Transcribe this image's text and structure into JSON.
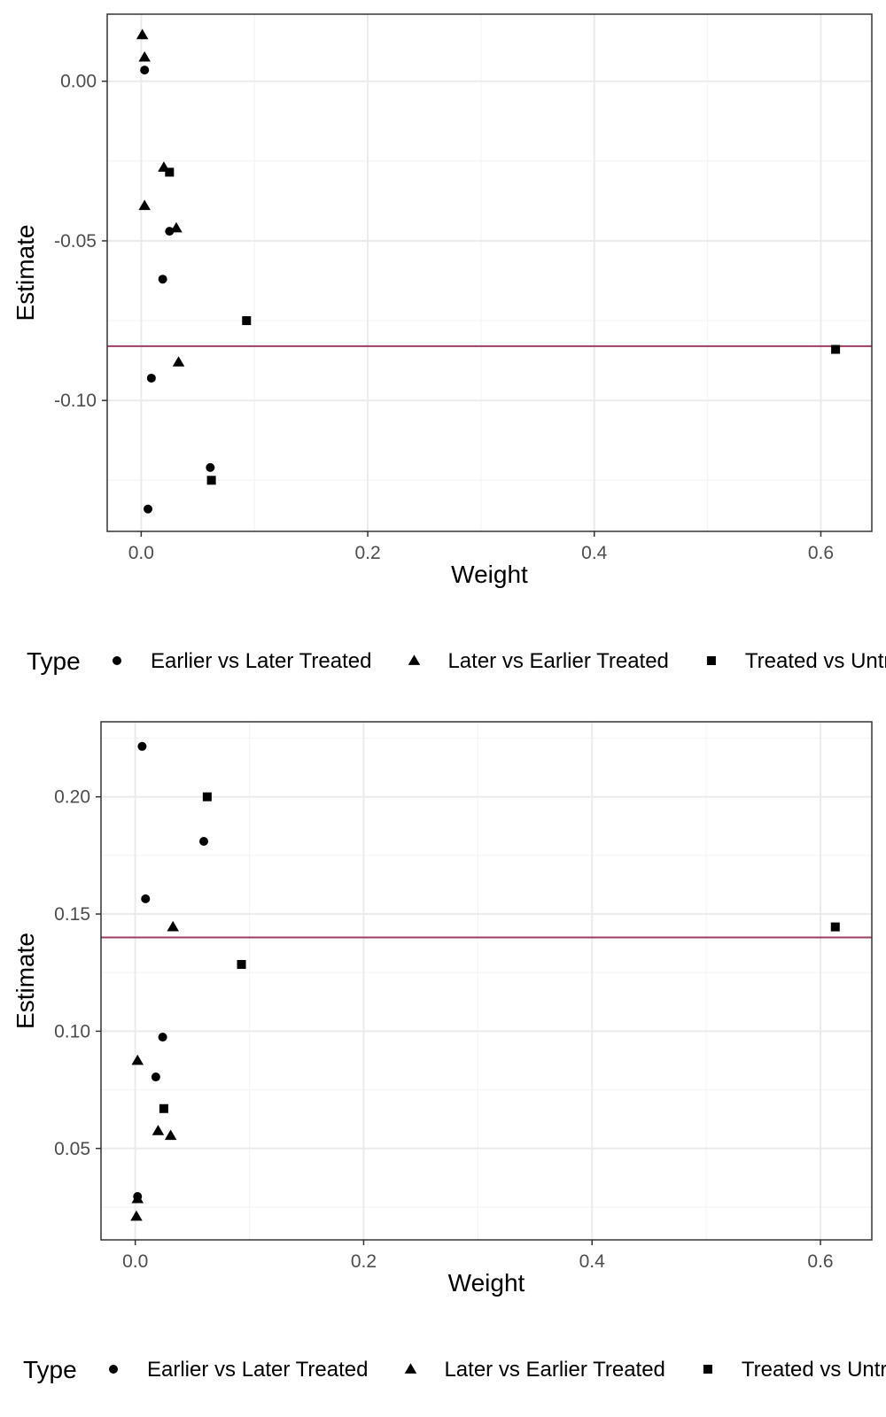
{
  "colors": {
    "reference_line": "#9e3d64",
    "points": "#000000",
    "grid_major": "#ebebeb",
    "grid_minor": "#f5f5f5",
    "panel_border": "#333333"
  },
  "legend": {
    "title": "Type",
    "position": "bottom",
    "items": [
      {
        "label": "Earlier vs Later Treated",
        "shape": "circle"
      },
      {
        "label": "Later vs Earlier Treated",
        "shape": "triangle"
      },
      {
        "label": "Treated vs Untreated",
        "shape": "square"
      }
    ]
  },
  "chart_data": [
    {
      "type": "scatter",
      "xlabel": "Weight",
      "ylabel": "Estimate",
      "xlim": [
        -0.03,
        0.645
      ],
      "ylim": [
        -0.141,
        0.021
      ],
      "xticks": [
        0.0,
        0.2,
        0.4,
        0.6
      ],
      "xtick_labels": [
        "0.0",
        "0.2",
        "0.4",
        "0.6"
      ],
      "yticks": [
        0.0,
        -0.05,
        -0.1
      ],
      "ytick_labels": [
        "0.00",
        "-0.05",
        "-0.10"
      ],
      "grid": true,
      "hline": -0.083,
      "series": [
        {
          "name": "Earlier vs Later Treated",
          "shape": "circle",
          "points": [
            [
              0.003,
              0.0035
            ],
            [
              0.025,
              -0.047
            ],
            [
              0.019,
              -0.062
            ],
            [
              0.009,
              -0.093
            ],
            [
              0.061,
              -0.121
            ],
            [
              0.006,
              -0.134
            ]
          ]
        },
        {
          "name": "Later vs Earlier Treated",
          "shape": "triangle",
          "points": [
            [
              0.001,
              0.0145
            ],
            [
              0.003,
              0.0075
            ],
            [
              0.02,
              -0.027
            ],
            [
              0.003,
              -0.039
            ],
            [
              0.031,
              -0.046
            ],
            [
              0.033,
              -0.088
            ]
          ]
        },
        {
          "name": "Treated vs Untreated",
          "shape": "square",
          "points": [
            [
              0.025,
              -0.0285
            ],
            [
              0.093,
              -0.075
            ],
            [
              0.613,
              -0.084
            ],
            [
              0.062,
              -0.125
            ]
          ]
        }
      ]
    },
    {
      "type": "scatter",
      "xlabel": "Weight",
      "ylabel": "Estimate",
      "xlim": [
        -0.03,
        0.645
      ],
      "ylim": [
        0.011,
        0.232
      ],
      "xticks": [
        0.0,
        0.2,
        0.4,
        0.6
      ],
      "xtick_labels": [
        "0.0",
        "0.2",
        "0.4",
        "0.6"
      ],
      "yticks": [
        0.05,
        0.1,
        0.15,
        0.2
      ],
      "ytick_labels": [
        "0.05",
        "0.10",
        "0.15",
        "0.20"
      ],
      "grid": true,
      "hline": 0.14,
      "series": [
        {
          "name": "Earlier vs Later Treated",
          "shape": "circle",
          "points": [
            [
              0.006,
              0.2215
            ],
            [
              0.06,
              0.181
            ],
            [
              0.009,
              0.1565
            ],
            [
              0.024,
              0.0975
            ],
            [
              0.018,
              0.0805
            ],
            [
              0.002,
              0.0295
            ]
          ]
        },
        {
          "name": "Later vs Earlier Treated",
          "shape": "triangle",
          "points": [
            [
              0.033,
              0.1445
            ],
            [
              0.002,
              0.0875
            ],
            [
              0.02,
              0.0575
            ],
            [
              0.031,
              0.0555
            ],
            [
              0.002,
              0.0285
            ],
            [
              0.001,
              0.021
            ]
          ]
        },
        {
          "name": "Treated vs Untreated",
          "shape": "square",
          "points": [
            [
              0.063,
              0.2
            ],
            [
              0.093,
              0.1285
            ],
            [
              0.613,
              0.1445
            ],
            [
              0.025,
              0.067
            ]
          ]
        }
      ]
    }
  ]
}
